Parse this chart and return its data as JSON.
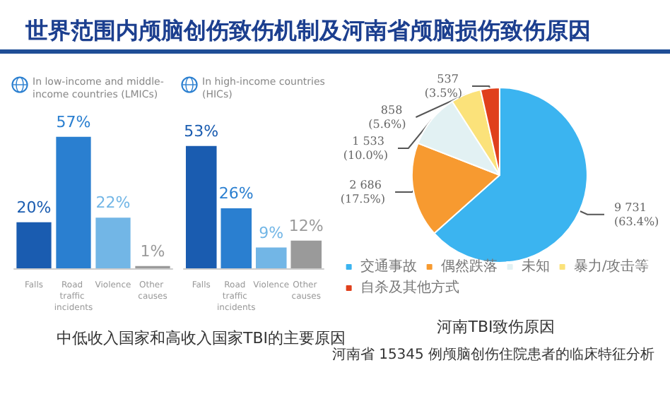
{
  "chart_data": [
    {
      "type": "bar",
      "title": "世界范围内颅脑创伤致伤机制及河南省颅脑损伤致伤原因",
      "subtitle": "In low-income and middle-income countries (LMICs)",
      "categories": [
        "Falls",
        "Road traffic incidents",
        "Violence",
        "Other causes"
      ],
      "values": [
        20,
        57,
        22,
        1
      ],
      "colors": [
        "#1a5cb0",
        "#2a7fd0",
        "#72b6e6",
        "#9a9a9a"
      ],
      "value_labels": [
        "20%",
        "57%",
        "22%",
        "1%"
      ],
      "tick_labels": "x",
      "annotations": [
        "中低收入国家和高收入国家TBI的主要原因"
      ]
    },
    {
      "type": "bar",
      "subtitle": "In high-income countries (HICs)",
      "categories": [
        "Falls",
        "Road traffic incidents",
        "Violence",
        "Other causes"
      ],
      "values": [
        53,
        26,
        9,
        12
      ],
      "colors": [
        "#1a5cb0",
        "#2a7fd0",
        "#72b6e6",
        "#9a9a9a"
      ],
      "value_labels": [
        "53%",
        "26%",
        "9%",
        "12%"
      ],
      "tick_labels": "x"
    },
    {
      "type": "pie",
      "title": "河南TBI致伤原因",
      "subtitle": "河南省 15345 例颅脑创伤住院患者的临床特征分析",
      "categories": [
        "交通事故",
        "偶然跌落",
        "未知",
        "暴力/攻击等",
        "自杀及其他方式"
      ],
      "values": [
        9731,
        2686,
        1533,
        858,
        537
      ],
      "colors": [
        "#3bb4f0",
        "#f79a30",
        "#e2f1f3",
        "#fbe27a",
        "#e0401c"
      ],
      "value_labels": [
        "9 731 (63.4%)",
        "2 686 (17.5%)",
        "1 533 (10.0%)",
        "858 (5.6%)",
        "537 (3.5%)"
      ],
      "legend": "bottom"
    }
  ]
}
